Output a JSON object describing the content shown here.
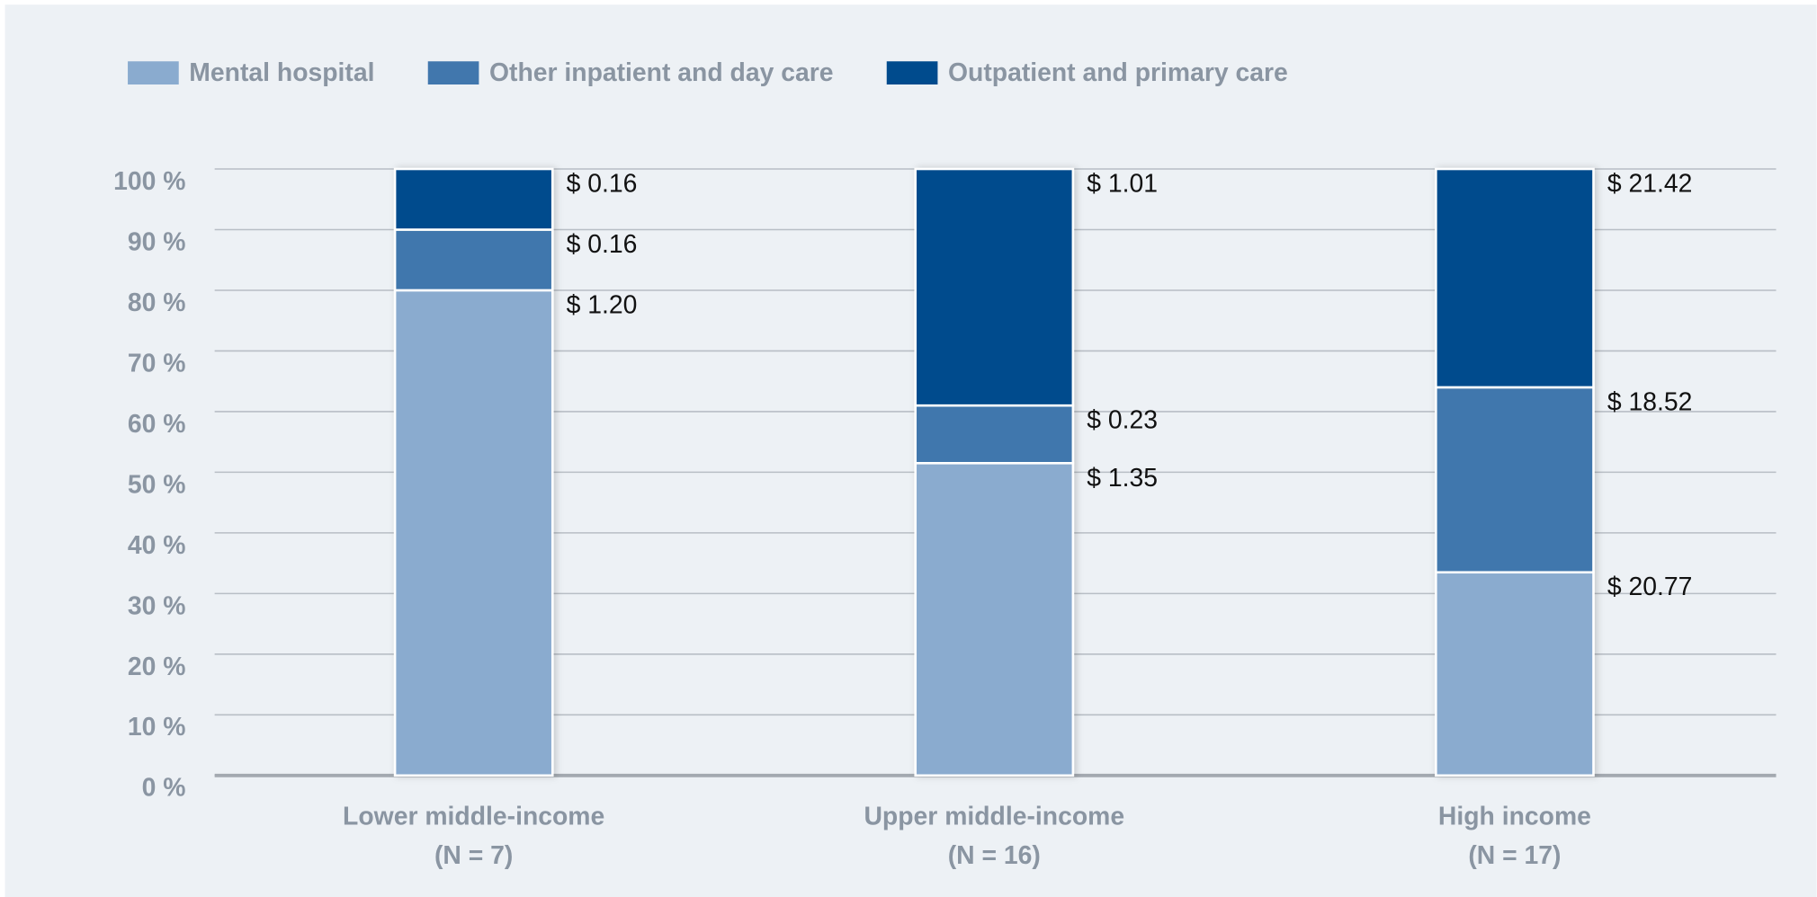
{
  "chart_data": {
    "type": "stacked_bar",
    "categories": [
      "Lower middle-income\n(N = 7)",
      "Upper middle-income\n(N = 16)",
      "High income\n(N = 17)"
    ],
    "series": [
      {
        "name": "Mental hospital",
        "color": "#8aabcf",
        "values": [
          80,
          51.5,
          33.5
        ],
        "dollar_labels": [
          "$ 1.20",
          "$ 1.35",
          "$ 20.77"
        ]
      },
      {
        "name": "Other inpatient and day care",
        "color": "#4177ad",
        "values": [
          10,
          9.5,
          30.5
        ],
        "dollar_labels": [
          "$ 0.16",
          "$ 0.23",
          "$ 18.52"
        ]
      },
      {
        "name": "Outpatient and primary care",
        "color": "#004b8d",
        "values": [
          10,
          39,
          36
        ],
        "dollar_labels": [
          "$ 0.16",
          "$ 1.01",
          "$ 21.42"
        ]
      }
    ],
    "ylim": [
      0,
      100
    ],
    "yticks": [
      {
        "value": 0,
        "label": "0 %"
      },
      {
        "value": 10,
        "label": "10 %"
      },
      {
        "value": 20,
        "label": "20 %"
      },
      {
        "value": 30,
        "label": "30 %"
      },
      {
        "value": 40,
        "label": "40 %"
      },
      {
        "value": 50,
        "label": "50 %"
      },
      {
        "value": 60,
        "label": "60 %"
      },
      {
        "value": 70,
        "label": "70 %"
      },
      {
        "value": 80,
        "label": "80 %"
      },
      {
        "value": 90,
        "label": "90 %"
      },
      {
        "value": 100,
        "label": "100 %"
      }
    ],
    "grid": true,
    "legend": "top-left"
  }
}
